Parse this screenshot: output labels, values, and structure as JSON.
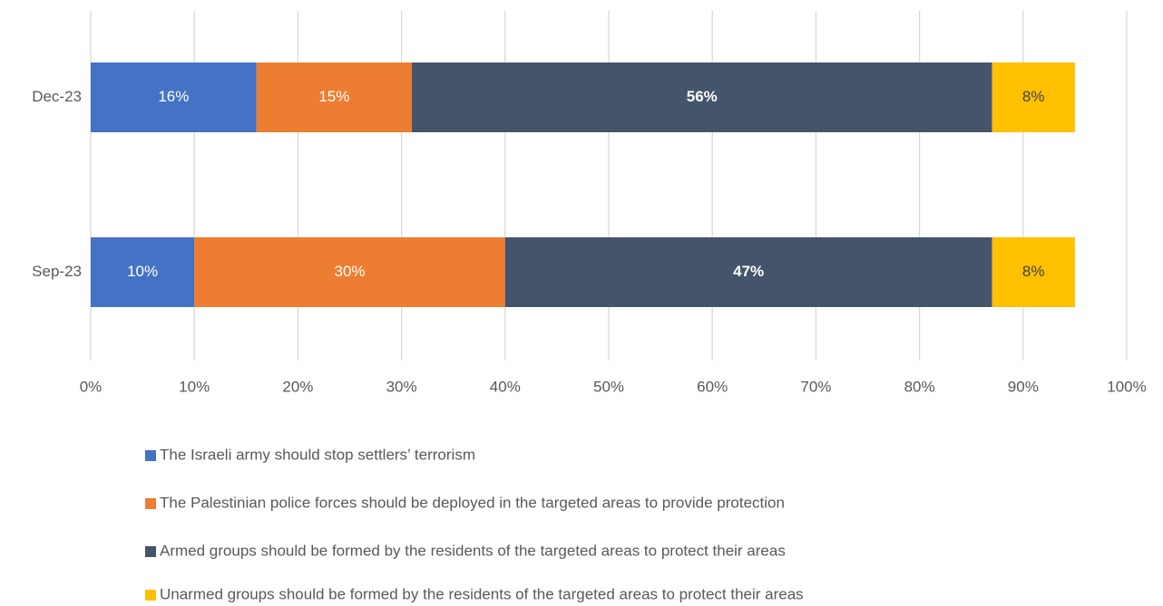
{
  "chart_data": {
    "type": "stacked_barh",
    "categories": [
      "Dec-23",
      "Sep-23"
    ],
    "series": [
      {
        "name": "The Israeli army should stop settlers’ terrorism",
        "color": "#4472c4",
        "values": [
          16,
          10
        ],
        "value_labels": [
          "16%",
          "10%"
        ]
      },
      {
        "name": "The Palestinian police forces should be deployed in the targeted areas to provide protection",
        "color": "#ed7d31",
        "values": [
          15,
          30
        ],
        "value_labels": [
          "15%",
          "30%"
        ]
      },
      {
        "name": "Armed groups should be formed by the residents of the targeted areas to protect their areas",
        "color": "#44546a",
        "values": [
          56,
          47
        ],
        "value_labels": [
          "56%",
          "47%"
        ]
      },
      {
        "name": "Unarmed groups should be formed by the residents of the targeted areas to protect their areas",
        "color": "#ffc000",
        "values": [
          8,
          8
        ],
        "value_labels": [
          "8%",
          "8%"
        ]
      }
    ],
    "xlim": [
      0,
      100
    ],
    "xticks": [
      {
        "value": 0,
        "label": "0%"
      },
      {
        "value": 10,
        "label": "10%"
      },
      {
        "value": 20,
        "label": "20%"
      },
      {
        "value": 30,
        "label": "30%"
      },
      {
        "value": 40,
        "label": "40%"
      },
      {
        "value": 50,
        "label": "50%"
      },
      {
        "value": 60,
        "label": "60%"
      },
      {
        "value": 70,
        "label": "70%"
      },
      {
        "value": 80,
        "label": "80%"
      },
      {
        "value": 90,
        "label": "90%"
      },
      {
        "value": 100,
        "label": "100%"
      }
    ],
    "grid": true,
    "legend": "bottom"
  }
}
